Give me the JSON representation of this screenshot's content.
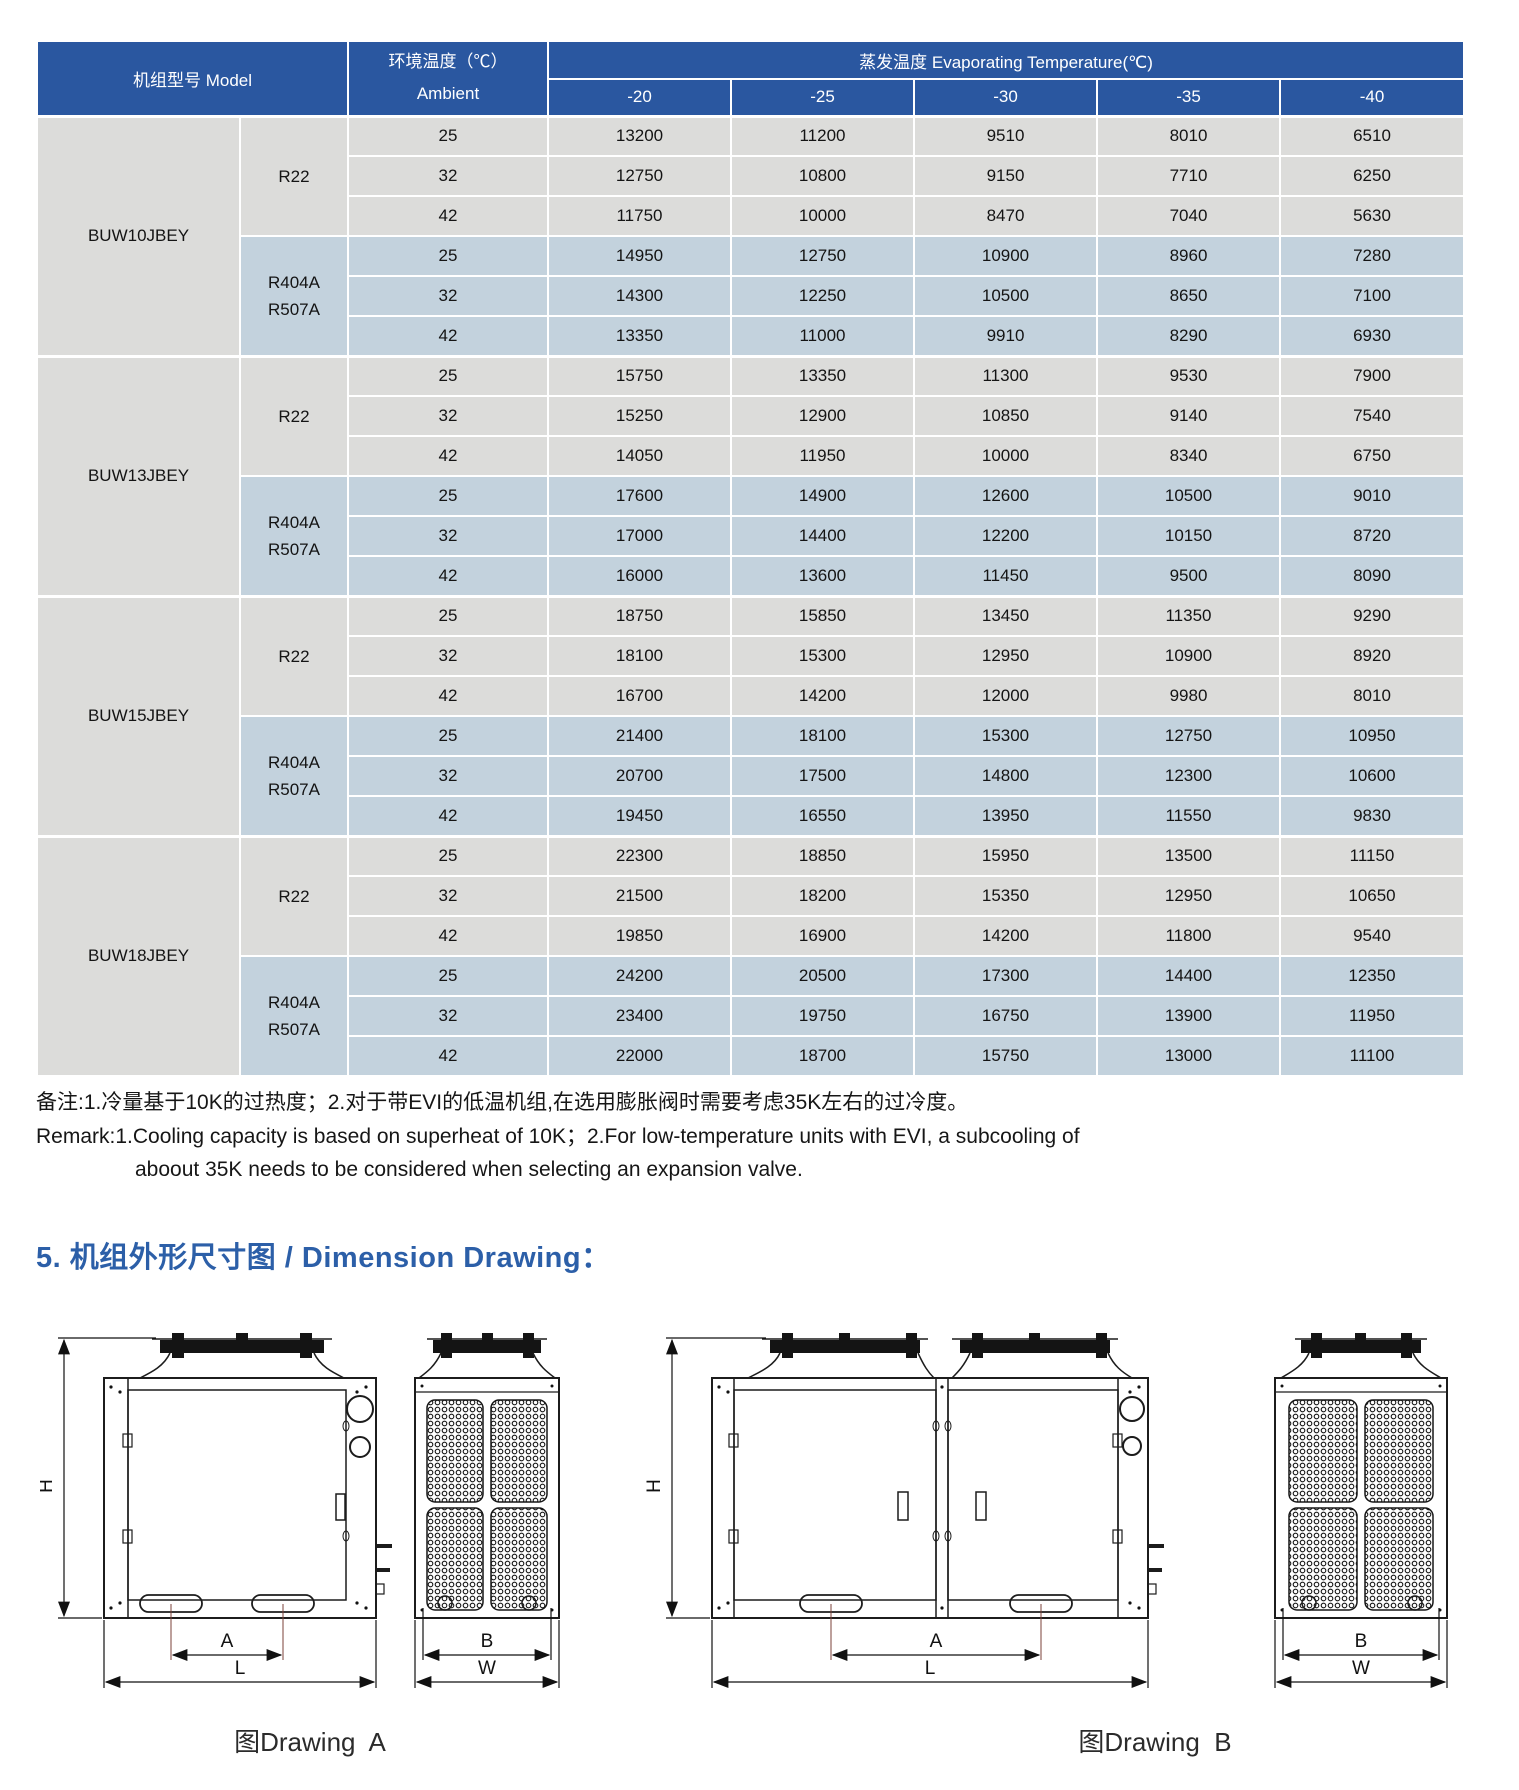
{
  "colors": {
    "header_blue": "#2A57A0",
    "row_gray": "#DCDCDA",
    "row_blue": "#C3D2DD",
    "heading_blue": "#2C5FA8"
  },
  "table": {
    "header": {
      "model": "机组型号 Model",
      "ambient_line1": "环境温度（℃）",
      "ambient_line2": "Ambient",
      "evap": "蒸发温度 Evaporating Temperature(℃)",
      "temps": [
        "-20",
        "-25",
        "-30",
        "-35",
        "-40"
      ]
    },
    "models": [
      {
        "name": "BUW10JBEY",
        "groups": [
          {
            "refrigerant": [
              "R22"
            ],
            "tone": "gray",
            "rows": [
              {
                "ambient": "25",
                "values": [
                  "13200",
                  "11200",
                  "9510",
                  "8010",
                  "6510"
                ]
              },
              {
                "ambient": "32",
                "values": [
                  "12750",
                  "10800",
                  "9150",
                  "7710",
                  "6250"
                ]
              },
              {
                "ambient": "42",
                "values": [
                  "11750",
                  "10000",
                  "8470",
                  "7040",
                  "5630"
                ]
              }
            ]
          },
          {
            "refrigerant": [
              "R404A",
              "R507A"
            ],
            "tone": "blue",
            "rows": [
              {
                "ambient": "25",
                "values": [
                  "14950",
                  "12750",
                  "10900",
                  "8960",
                  "7280"
                ]
              },
              {
                "ambient": "32",
                "values": [
                  "14300",
                  "12250",
                  "10500",
                  "8650",
                  "7100"
                ]
              },
              {
                "ambient": "42",
                "values": [
                  "13350",
                  "11000",
                  "9910",
                  "8290",
                  "6930"
                ]
              }
            ]
          }
        ]
      },
      {
        "name": "BUW13JBEY",
        "groups": [
          {
            "refrigerant": [
              "R22"
            ],
            "tone": "gray",
            "rows": [
              {
                "ambient": "25",
                "values": [
                  "15750",
                  "13350",
                  "11300",
                  "9530",
                  "7900"
                ]
              },
              {
                "ambient": "32",
                "values": [
                  "15250",
                  "12900",
                  "10850",
                  "9140",
                  "7540"
                ]
              },
              {
                "ambient": "42",
                "values": [
                  "14050",
                  "11950",
                  "10000",
                  "8340",
                  "6750"
                ]
              }
            ]
          },
          {
            "refrigerant": [
              "R404A",
              "R507A"
            ],
            "tone": "blue",
            "rows": [
              {
                "ambient": "25",
                "values": [
                  "17600",
                  "14900",
                  "12600",
                  "10500",
                  "9010"
                ]
              },
              {
                "ambient": "32",
                "values": [
                  "17000",
                  "14400",
                  "12200",
                  "10150",
                  "8720"
                ]
              },
              {
                "ambient": "42",
                "values": [
                  "16000",
                  "13600",
                  "11450",
                  "9500",
                  "8090"
                ]
              }
            ]
          }
        ]
      },
      {
        "name": "BUW15JBEY",
        "groups": [
          {
            "refrigerant": [
              "R22"
            ],
            "tone": "gray",
            "rows": [
              {
                "ambient": "25",
                "values": [
                  "18750",
                  "15850",
                  "13450",
                  "11350",
                  "9290"
                ]
              },
              {
                "ambient": "32",
                "values": [
                  "18100",
                  "15300",
                  "12950",
                  "10900",
                  "8920"
                ]
              },
              {
                "ambient": "42",
                "values": [
                  "16700",
                  "14200",
                  "12000",
                  "9980",
                  "8010"
                ]
              }
            ]
          },
          {
            "refrigerant": [
              "R404A",
              "R507A"
            ],
            "tone": "blue",
            "rows": [
              {
                "ambient": "25",
                "values": [
                  "21400",
                  "18100",
                  "15300",
                  "12750",
                  "10950"
                ]
              },
              {
                "ambient": "32",
                "values": [
                  "20700",
                  "17500",
                  "14800",
                  "12300",
                  "10600"
                ]
              },
              {
                "ambient": "42",
                "values": [
                  "19450",
                  "16550",
                  "13950",
                  "11550",
                  "9830"
                ]
              }
            ]
          }
        ]
      },
      {
        "name": "BUW18JBEY",
        "groups": [
          {
            "refrigerant": [
              "R22"
            ],
            "tone": "gray",
            "rows": [
              {
                "ambient": "25",
                "values": [
                  "22300",
                  "18850",
                  "15950",
                  "13500",
                  "11150"
                ]
              },
              {
                "ambient": "32",
                "values": [
                  "21500",
                  "18200",
                  "15350",
                  "12950",
                  "10650"
                ]
              },
              {
                "ambient": "42",
                "values": [
                  "19850",
                  "16900",
                  "14200",
                  "11800",
                  "9540"
                ]
              }
            ]
          },
          {
            "refrigerant": [
              "R404A",
              "R507A"
            ],
            "tone": "blue",
            "rows": [
              {
                "ambient": "25",
                "values": [
                  "24200",
                  "20500",
                  "17300",
                  "14400",
                  "12350"
                ]
              },
              {
                "ambient": "32",
                "values": [
                  "23400",
                  "19750",
                  "16750",
                  "13900",
                  "11950"
                ]
              },
              {
                "ambient": "42",
                "values": [
                  "22000",
                  "18700",
                  "15750",
                  "13000",
                  "11100"
                ]
              }
            ]
          }
        ]
      }
    ]
  },
  "remarks": {
    "line1": "备注:1.冷量基于10K的过热度；2.对于带EVI的低温机组,在选用膨胀阀时需要考虑35K左右的过冷度。",
    "line2": "Remark:1.Cooling capacity is based on superheat of 10K；2.For low-temperature units with EVI, a subcooling of",
    "line3": "aboout 35K needs to be considered when selecting an expansion valve."
  },
  "drawings": {
    "heading": "5. 机组外形尺寸图 / Dimension Drawing：",
    "caption_a": "图Drawing  A",
    "caption_b": "图Drawing  B",
    "dim_h": "H",
    "dim_a": "A",
    "dim_l": "L",
    "dim_b": "B",
    "dim_w": "W"
  }
}
